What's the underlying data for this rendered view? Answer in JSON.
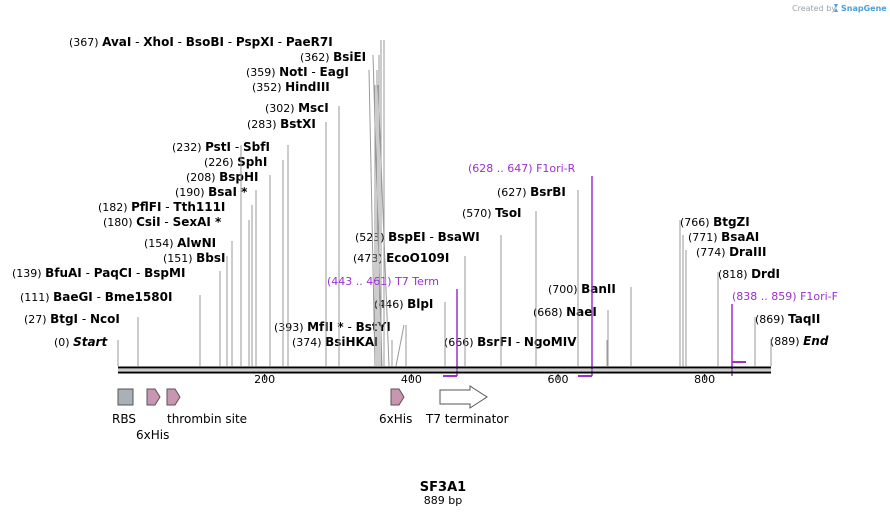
{
  "credit": {
    "created_by": "Created by",
    "brand": "SnapGene",
    "brand_color": "#4aa0dc"
  },
  "sequence": {
    "name": "SF3A1",
    "length_label": "889 bp",
    "length": 889
  },
  "axis": {
    "ticks": [
      {
        "pos": 200,
        "label": "200"
      },
      {
        "pos": 400,
        "label": "400"
      },
      {
        "pos": 600,
        "label": "600"
      },
      {
        "pos": 800,
        "label": "800"
      }
    ]
  },
  "sites": [
    {
      "pos": "(367)",
      "names": [
        "AvaI",
        "XhoI",
        "BsoBI",
        "PspXI",
        "PaeR7I"
      ]
    },
    {
      "pos": "(362)",
      "names": [
        "BsiEI"
      ]
    },
    {
      "pos": "(359)",
      "names": [
        "NotI",
        "EagI"
      ]
    },
    {
      "pos": "(352)",
      "names": [
        "HindIII"
      ]
    },
    {
      "pos": "(302)",
      "names": [
        "MscI"
      ]
    },
    {
      "pos": "(283)",
      "names": [
        "BstXI"
      ]
    },
    {
      "pos": "(232)",
      "names": [
        "PstI",
        "SbfI"
      ]
    },
    {
      "pos": "(226)",
      "names": [
        "SphI"
      ]
    },
    {
      "pos": "(208)",
      "names": [
        "BspHI"
      ]
    },
    {
      "pos": "(190)",
      "names": [
        "BsaI *"
      ]
    },
    {
      "pos": "(182)",
      "names": [
        "PflFI",
        "Tth111I"
      ]
    },
    {
      "pos": "(180)",
      "names": [
        "CsiI",
        "SexAI *"
      ]
    },
    {
      "pos": "(154)",
      "names": [
        "AlwNI"
      ]
    },
    {
      "pos": "(151)",
      "names": [
        "BbsI"
      ]
    },
    {
      "pos": "(139)",
      "names": [
        "BfuAI",
        "PaqCI",
        "BspMI"
      ]
    },
    {
      "pos": "(111)",
      "names": [
        "BaeGI",
        "Bme1580I"
      ]
    },
    {
      "pos": "(27)",
      "names": [
        "BtgI",
        "NcoI"
      ]
    },
    {
      "pos": "(0)",
      "names": [
        "Start"
      ],
      "italic": true
    },
    {
      "pos": "(393)",
      "names": [
        "MfII *",
        "BstYI"
      ]
    },
    {
      "pos": "(374)",
      "names": [
        "BsiHKAI"
      ]
    },
    {
      "pos": "(627)",
      "names": [
        "BsrBI"
      ]
    },
    {
      "pos": "(570)",
      "names": [
        "TsoI"
      ]
    },
    {
      "pos": "(523)",
      "names": [
        "BspEI",
        "BsaWI"
      ]
    },
    {
      "pos": "(473)",
      "names": [
        "EcoO109I"
      ]
    },
    {
      "pos": "(446)",
      "names": [
        "BlpI"
      ]
    },
    {
      "pos": "(666)",
      "names": [
        "BsrFI",
        "NgoMIV"
      ]
    },
    {
      "pos": "(700)",
      "names": [
        "BanII"
      ]
    },
    {
      "pos": "(668)",
      "names": [
        "NaeI"
      ]
    },
    {
      "pos": "(766)",
      "names": [
        "BtgZI"
      ]
    },
    {
      "pos": "(771)",
      "names": [
        "BsaAI"
      ]
    },
    {
      "pos": "(774)",
      "names": [
        "DraIII"
      ]
    },
    {
      "pos": "(818)",
      "names": [
        "DrdI"
      ]
    },
    {
      "pos": "(869)",
      "names": [
        "TaqII"
      ]
    },
    {
      "pos": "(889)",
      "names": [
        "End"
      ],
      "italic": true
    }
  ],
  "primers": [
    {
      "range": "(628 .. 647)",
      "name": "F1ori-R",
      "direction": "reverse",
      "start": 628,
      "end": 647,
      "color": "#9b30d0"
    },
    {
      "range": "(443 .. 461)",
      "name": "T7 Term",
      "direction": "reverse",
      "start": 443,
      "end": 461,
      "color": "#9b30d0"
    },
    {
      "range": "(838 .. 859)",
      "name": "F1ori-F",
      "direction": "forward",
      "start": 838,
      "end": 859,
      "color": "#9b30d0"
    }
  ],
  "features": [
    {
      "name": "RBS",
      "type": "RBS",
      "color": "#a9b0b8"
    },
    {
      "name": "6xHis",
      "type": "tag",
      "color": "#c896b0"
    },
    {
      "name": "thrombin site",
      "type": "site",
      "color": "#c896b0"
    },
    {
      "name": "6xHis",
      "type": "tag",
      "color": "#c896b0"
    },
    {
      "name": "T7 terminator",
      "type": "terminator",
      "color": "#ffffff"
    }
  ]
}
